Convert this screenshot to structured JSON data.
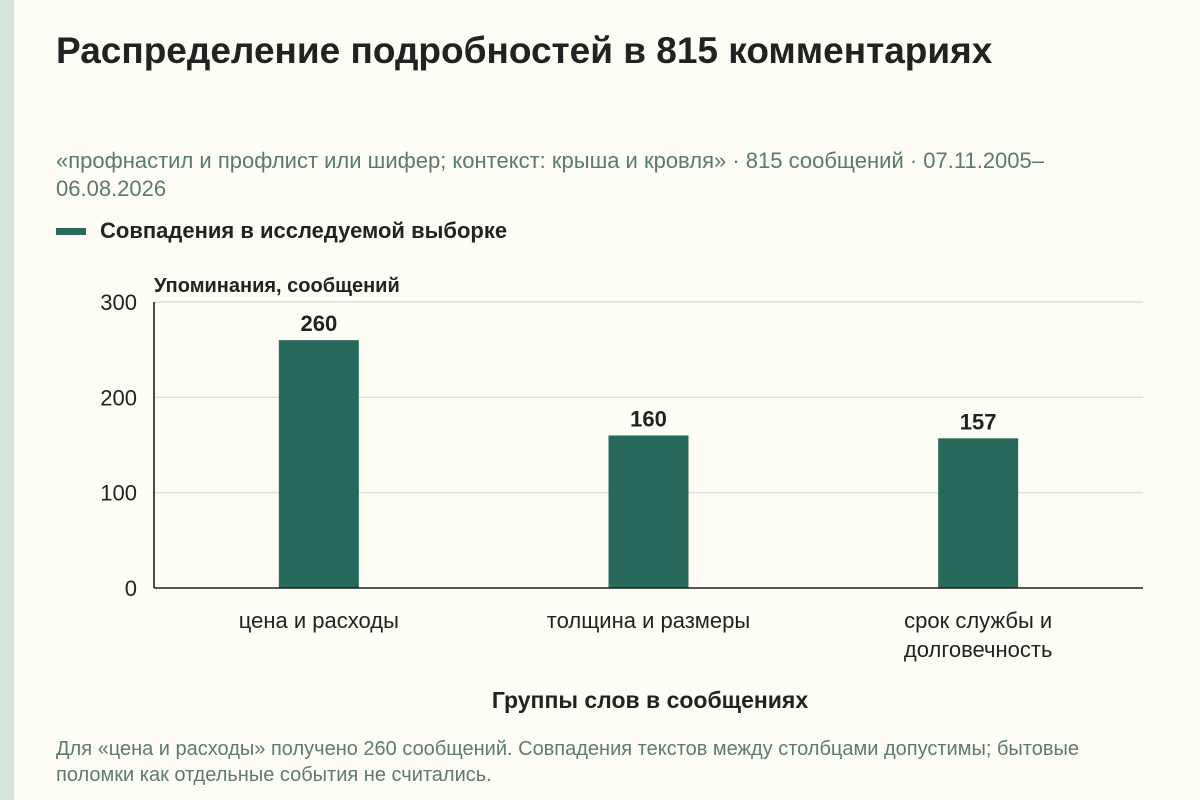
{
  "title": "Распределение подробностей в 815 комментариях",
  "subtitle": "«профнастил и профлист или шифер; контекст: крыша и кровля» · 815 сообщений · 07.11.2005–06.08.2026",
  "legend": {
    "label": "Совпадения в исследуемой выборке"
  },
  "footnote": "Для «цена и расходы» получено 260 сообщений. Совпадения текстов между столбцами допустимы; бытовые поломки как отдельные события не считались.",
  "colors": {
    "bar": "#27695a",
    "grid": "#d9d9d2",
    "axis": "#1f1f1f"
  },
  "chart_data": {
    "type": "bar",
    "title": "Распределение подробностей в 815 комментариях",
    "ylabel": "Упоминания, сообщений",
    "xlabel": "Группы слов в сообщениях",
    "ylim": [
      0,
      300
    ],
    "yticks": [
      0,
      100,
      200,
      300
    ],
    "grid": true,
    "legend_position": "top-left",
    "categories": [
      [
        "цена и расходы"
      ],
      [
        "толщина и размеры"
      ],
      [
        "срок службы и",
        "долговечность"
      ]
    ],
    "series": [
      {
        "name": "Совпадения в исследуемой выборке",
        "values": [
          260,
          160,
          157
        ]
      }
    ]
  }
}
